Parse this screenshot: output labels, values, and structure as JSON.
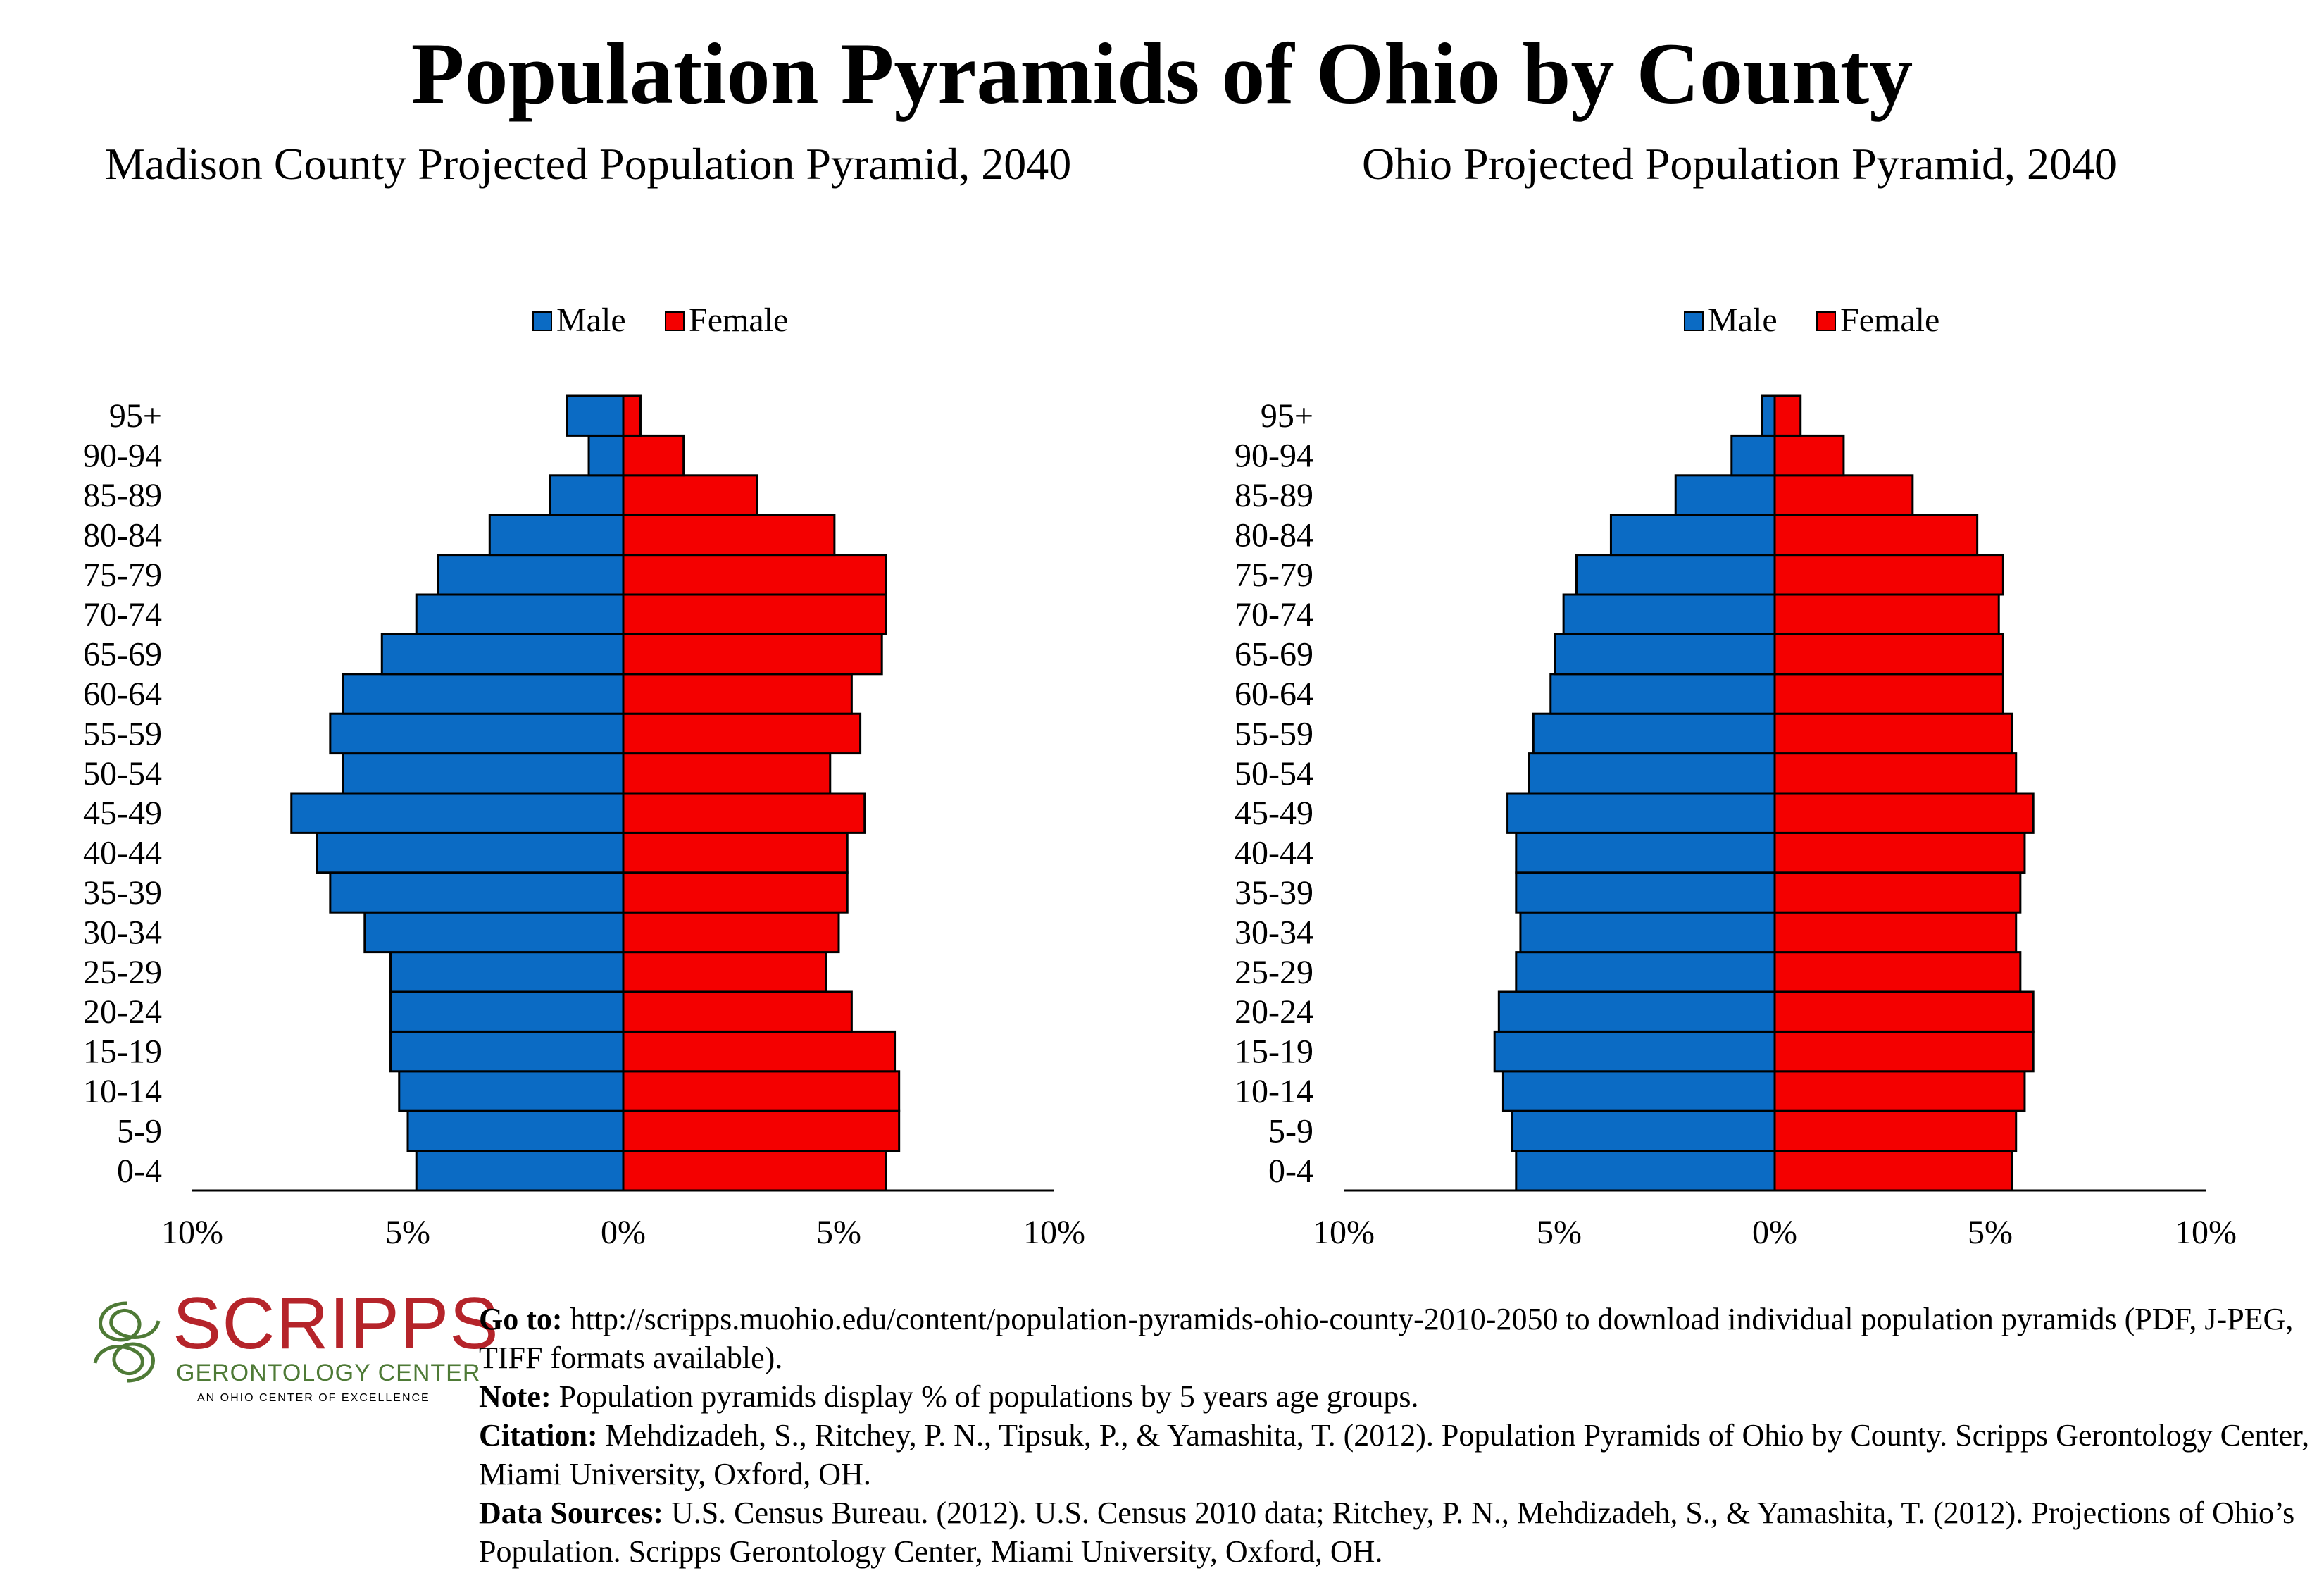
{
  "title": "Population Pyramids of Ohio by County",
  "legend": {
    "male": "Male",
    "female": "Female"
  },
  "colors": {
    "male": "#0b6bc4",
    "female": "#f40000"
  },
  "chart_data": [
    {
      "type": "bar",
      "orientation": "horizontal-pyramid",
      "title": "Madison County Projected Population Pyramid, 2040",
      "categories": [
        "0-4",
        "5-9",
        "10-14",
        "15-19",
        "20-24",
        "25-29",
        "30-34",
        "35-39",
        "40-44",
        "45-49",
        "50-54",
        "55-59",
        "60-64",
        "65-69",
        "70-74",
        "75-79",
        "80-84",
        "85-89",
        "90-94",
        "95+"
      ],
      "series": [
        {
          "name": "Male",
          "values": [
            4.8,
            5.0,
            5.2,
            5.4,
            5.4,
            5.4,
            6.0,
            6.8,
            7.1,
            7.7,
            6.5,
            6.8,
            6.5,
            5.6,
            4.8,
            4.3,
            3.1,
            1.7,
            0.8,
            1.3
          ]
        },
        {
          "name": "Female",
          "values": [
            6.1,
            6.4,
            6.4,
            6.3,
            5.3,
            4.7,
            5.0,
            5.2,
            5.2,
            5.6,
            4.8,
            5.5,
            5.3,
            6.0,
            6.1,
            6.1,
            4.9,
            3.1,
            1.4,
            0.4
          ]
        }
      ],
      "xticks": [
        "10%",
        "5%",
        "0%",
        "5%",
        "10%"
      ],
      "xlim": [
        -10,
        10
      ],
      "legend_position": "top-center"
    },
    {
      "type": "bar",
      "orientation": "horizontal-pyramid",
      "title": "Ohio Projected Population Pyramid, 2040",
      "categories": [
        "0-4",
        "5-9",
        "10-14",
        "15-19",
        "20-24",
        "25-29",
        "30-34",
        "35-39",
        "40-44",
        "45-49",
        "50-54",
        "55-59",
        "60-64",
        "65-69",
        "70-74",
        "75-79",
        "80-84",
        "85-89",
        "90-94",
        "95+"
      ],
      "series": [
        {
          "name": "Male",
          "values": [
            6.0,
            6.1,
            6.3,
            6.5,
            6.4,
            6.0,
            5.9,
            6.0,
            6.0,
            6.2,
            5.7,
            5.6,
            5.2,
            5.1,
            4.9,
            4.6,
            3.8,
            2.3,
            1.0,
            0.3
          ]
        },
        {
          "name": "Female",
          "values": [
            5.5,
            5.6,
            5.8,
            6.0,
            6.0,
            5.7,
            5.6,
            5.7,
            5.8,
            6.0,
            5.6,
            5.5,
            5.3,
            5.3,
            5.2,
            5.3,
            4.7,
            3.2,
            1.6,
            0.6
          ]
        }
      ],
      "xticks": [
        "10%",
        "5%",
        "0%",
        "5%",
        "10%"
      ],
      "xlim": [
        -10,
        10
      ],
      "legend_position": "top-center"
    }
  ],
  "footer": {
    "logo": {
      "name": "SCRIPPS",
      "subtitle": "GERONTOLOGY CENTER",
      "tagline": "AN OHIO CENTER OF EXCELLENCE"
    },
    "goto_label": "Go to:",
    "goto_text": "http://scripps.muohio.edu/content/population-pyramids-ohio-county-2010-2050 to download individual population pyramids (PDF, J-PEG, TIFF formats available).",
    "note_label": "Note:",
    "note_text": "Population pyramids display % of populations by 5 years age groups.",
    "citation_label": "Citation:",
    "citation_text": "Mehdizadeh, S., Ritchey, P. N., Tipsuk, P., & Yamashita, T. (2012). Population Pyramids of Ohio by County. Scripps Gerontology Center, Miami University, Oxford, OH.",
    "sources_label": "Data Sources:",
    "sources_text": "U.S. Census Bureau. (2012). U.S. Census 2010 data; Ritchey, P. N., Mehdizadeh, S., & Yamashita, T. (2012). Projections of Ohio’s Population. Scripps Gerontology Center, Miami University, Oxford, OH."
  }
}
